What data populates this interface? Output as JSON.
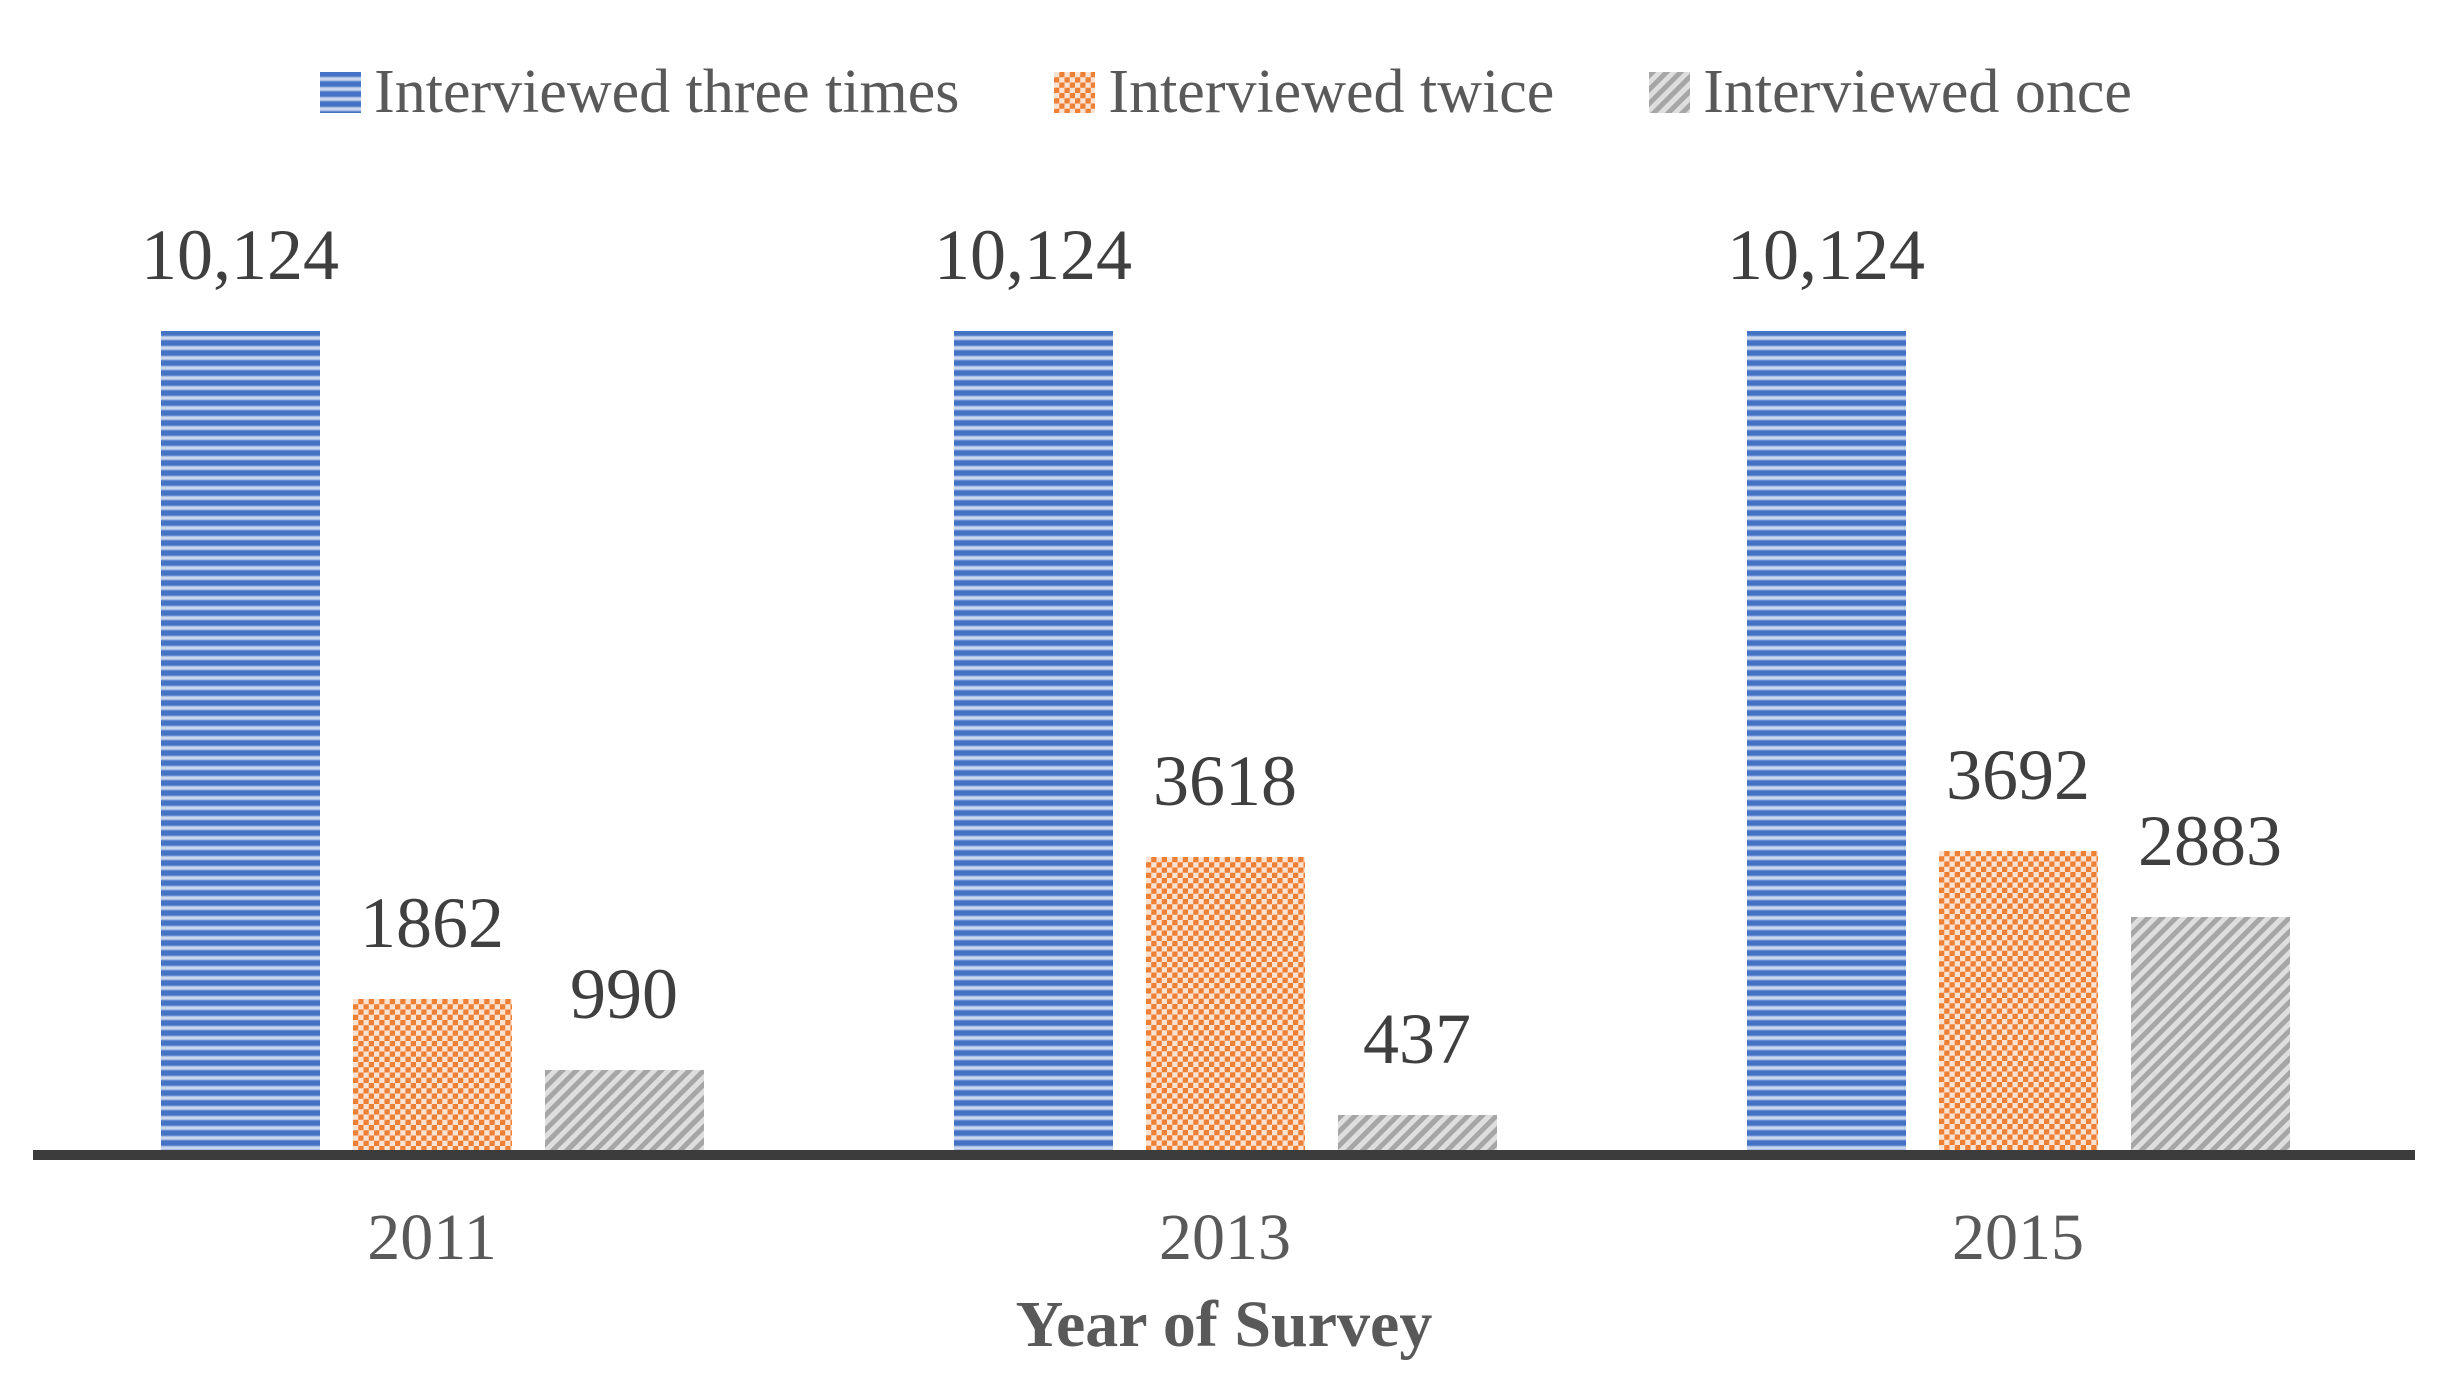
{
  "chart_data": {
    "type": "bar",
    "title": "",
    "xlabel": "Year of Survey",
    "ylabel": "",
    "categories": [
      "2011",
      "2013",
      "2015"
    ],
    "series": [
      {
        "name": "Interviewed three times",
        "pattern": "horizontal-stripes",
        "color": "#4472C4",
        "pattern_light_color": "#C9D6EE",
        "values": [
          10124,
          10124,
          10124
        ],
        "value_labels": [
          "10,124",
          "10,124",
          "10,124"
        ]
      },
      {
        "name": "Interviewed twice",
        "pattern": "checkerboard",
        "color": "#ED7D31",
        "pattern_light_color": "#FBE3D3",
        "values": [
          1862,
          3618,
          3692
        ],
        "value_labels": [
          "1862",
          "3618",
          "3692"
        ]
      },
      {
        "name": "Interviewed once",
        "pattern": "diagonal-stripes",
        "color": "#A6A6A6",
        "pattern_light_color": "#DEDEDE",
        "values": [
          990,
          437,
          2883
        ],
        "value_labels": [
          "990",
          "437",
          "2883"
        ]
      }
    ],
    "ylim": [
      0,
      10124
    ],
    "grid": false,
    "y_axis_shown": false,
    "legend_position": "top",
    "data_labels": true,
    "value_label_color": "#3F3F3F",
    "tick_label_color": "#595959",
    "axis_line_color": "#3C3C3C"
  }
}
